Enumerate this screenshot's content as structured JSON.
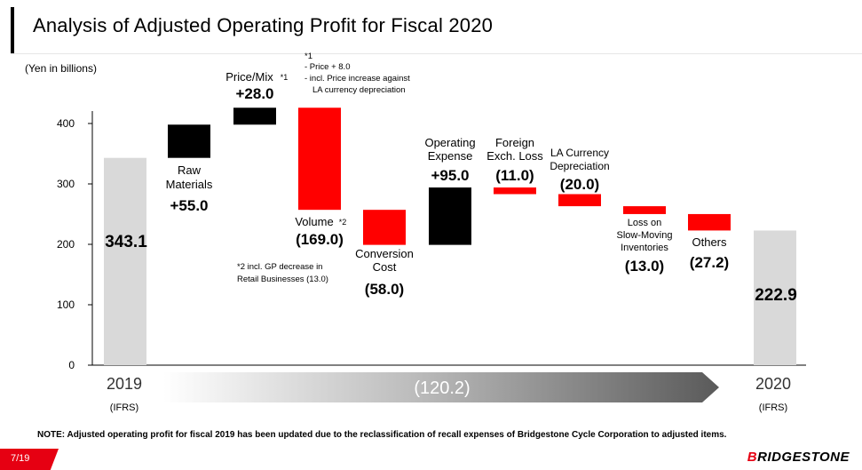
{
  "header": {
    "title": "Analysis of Adjusted Operating Profit for Fiscal 2020",
    "unit": "(Yen in billions)"
  },
  "colors": {
    "positive": "#000000",
    "negative": "#ff0000",
    "total": "#d9d9d9",
    "accent": "#e60012"
  },
  "chart_data": {
    "type": "bar",
    "subtype": "waterfall",
    "yticks": [
      "0",
      "100",
      "200",
      "300",
      "400"
    ],
    "ylim": [
      0,
      430
    ],
    "grid": false,
    "steps": [
      {
        "id": "fy2019",
        "kind": "total",
        "value": 343.1,
        "label_lines": [],
        "value_label": "343.1"
      },
      {
        "id": "raw",
        "kind": "increase",
        "value": 55.0,
        "label_lines": [
          "Raw",
          "Materials"
        ],
        "value_label": "+55.0"
      },
      {
        "id": "price",
        "kind": "increase",
        "value": 28.0,
        "label_lines": [
          "Price/Mix"
        ],
        "label_mark": "*1",
        "value_label": "+28.0"
      },
      {
        "id": "volume",
        "kind": "decrease",
        "value": -169.0,
        "label_lines": [
          "Volume"
        ],
        "label_mark": "*2",
        "value_label": "(169.0)"
      },
      {
        "id": "conversion",
        "kind": "decrease",
        "value": -58.0,
        "label_lines": [
          "Conversion",
          "Cost"
        ],
        "value_label": "(58.0)"
      },
      {
        "id": "opex",
        "kind": "increase",
        "value": 95.0,
        "label_lines": [
          "Operating",
          "Expense"
        ],
        "value_label": "+95.0"
      },
      {
        "id": "fx",
        "kind": "decrease",
        "value": -11.0,
        "label_lines": [
          "Foreign",
          "Exch. Loss"
        ],
        "value_label": "(11.0)"
      },
      {
        "id": "la",
        "kind": "decrease",
        "value": -20.0,
        "label_lines": [
          "LA Currency",
          "Depreciation"
        ],
        "value_label": "(20.0)"
      },
      {
        "id": "slow",
        "kind": "decrease",
        "value": -13.0,
        "label_lines": [
          "Loss on",
          "Slow-Moving",
          "Inventories"
        ],
        "value_label": "(13.0)"
      },
      {
        "id": "others",
        "kind": "decrease",
        "value": -27.2,
        "label_lines": [
          "Others"
        ],
        "value_label": "(27.2)"
      },
      {
        "id": "fy2020",
        "kind": "total",
        "value": 222.9,
        "label_lines": [],
        "value_label": "222.9"
      }
    ],
    "x_axis": {
      "start_label": "2019",
      "start_sub": "(IFRS)",
      "end_label": "2020",
      "end_sub": "(IFRS)",
      "change_label": "(120.2)"
    },
    "notes": {
      "note1_lines": [
        "*1",
        "- Price  + 8.0",
        "- incl. Price increase against",
        "LA currency depreciation"
      ],
      "note2_lines": [
        "*2 incl. GP decrease in",
        "Retail Businesses (13.0)"
      ]
    }
  },
  "footer": {
    "note": "NOTE: Adjusted operating profit for fiscal 2019 has been updated due to the reclassification of recall expenses of Bridgestone Cycle Corporation to adjusted items.",
    "page": "7/19",
    "logo_first": "B",
    "logo_rest": "RIDGESTONE"
  }
}
